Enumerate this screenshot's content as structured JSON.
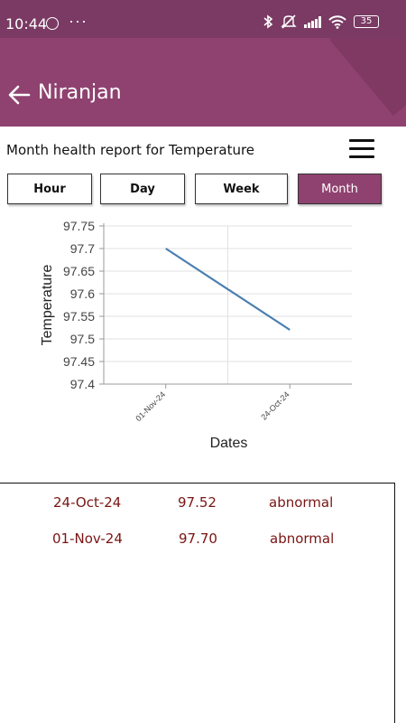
{
  "status_bar": {
    "time": "10:44",
    "more_indicator": "···",
    "battery_level": "35",
    "icons": [
      "whatsapp-icon",
      "bluetooth-icon",
      "mute-icon",
      "signal-icon",
      "wifi-icon",
      "battery-icon"
    ]
  },
  "app_bar": {
    "title": "Niranjan",
    "back_icon": "back-arrow-icon",
    "background_color": "#8f426f"
  },
  "report": {
    "title": "Month health report for Temperature",
    "menu_icon": "hamburger-menu-icon"
  },
  "tabs": [
    {
      "label": "Hour",
      "active": false
    },
    {
      "label": "Day",
      "active": false
    },
    {
      "label": "Week",
      "active": false
    },
    {
      "label": "Month",
      "active": true
    }
  ],
  "chart_data": {
    "type": "line",
    "x": [
      "01-Nov-24",
      "24-Oct-24"
    ],
    "series": [
      {
        "values": [
          97.7,
          97.52
        ],
        "color": "#4a7fb0"
      }
    ],
    "xlabel": "Dates",
    "ylabel": "Temperature",
    "ylim": [
      97.4,
      97.75
    ],
    "yticks": [
      "97.75",
      "97.7",
      "97.65",
      "97.6",
      "97.55",
      "97.5",
      "97.45",
      "97.4"
    ],
    "grid": true
  },
  "readings": [
    {
      "date": "24-Oct-24",
      "value": "97.52",
      "status": "abnormal"
    },
    {
      "date": "01-Nov-24",
      "value": "97.70",
      "status": "abnormal"
    }
  ]
}
